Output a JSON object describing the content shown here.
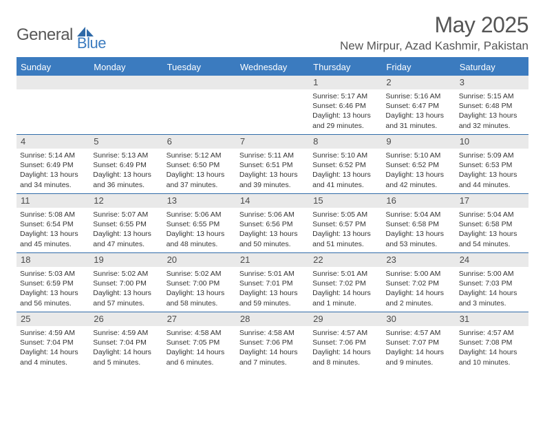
{
  "logo": {
    "text1": "General",
    "text2": "Blue"
  },
  "title": {
    "month": "May 2025",
    "location": "New Mirpur, Azad Kashmir, Pakistan"
  },
  "colors": {
    "header_bg": "#3b7bbf",
    "header_border": "#3b7bbf",
    "week_divider": "#2f6aa8",
    "daynum_bg": "#e9e9e9",
    "text_body": "#333333",
    "text_title": "#555555",
    "logo_gray": "#575757",
    "logo_blue": "#3b7bbf"
  },
  "day_labels": [
    "Sunday",
    "Monday",
    "Tuesday",
    "Wednesday",
    "Thursday",
    "Friday",
    "Saturday"
  ],
  "weeks": [
    [
      {
        "n": "",
        "lines": []
      },
      {
        "n": "",
        "lines": []
      },
      {
        "n": "",
        "lines": []
      },
      {
        "n": "",
        "lines": []
      },
      {
        "n": "1",
        "lines": [
          "Sunrise: 5:17 AM",
          "Sunset: 6:46 PM",
          "Daylight: 13 hours",
          "and 29 minutes."
        ]
      },
      {
        "n": "2",
        "lines": [
          "Sunrise: 5:16 AM",
          "Sunset: 6:47 PM",
          "Daylight: 13 hours",
          "and 31 minutes."
        ]
      },
      {
        "n": "3",
        "lines": [
          "Sunrise: 5:15 AM",
          "Sunset: 6:48 PM",
          "Daylight: 13 hours",
          "and 32 minutes."
        ]
      }
    ],
    [
      {
        "n": "4",
        "lines": [
          "Sunrise: 5:14 AM",
          "Sunset: 6:49 PM",
          "Daylight: 13 hours",
          "and 34 minutes."
        ]
      },
      {
        "n": "5",
        "lines": [
          "Sunrise: 5:13 AM",
          "Sunset: 6:49 PM",
          "Daylight: 13 hours",
          "and 36 minutes."
        ]
      },
      {
        "n": "6",
        "lines": [
          "Sunrise: 5:12 AM",
          "Sunset: 6:50 PM",
          "Daylight: 13 hours",
          "and 37 minutes."
        ]
      },
      {
        "n": "7",
        "lines": [
          "Sunrise: 5:11 AM",
          "Sunset: 6:51 PM",
          "Daylight: 13 hours",
          "and 39 minutes."
        ]
      },
      {
        "n": "8",
        "lines": [
          "Sunrise: 5:10 AM",
          "Sunset: 6:52 PM",
          "Daylight: 13 hours",
          "and 41 minutes."
        ]
      },
      {
        "n": "9",
        "lines": [
          "Sunrise: 5:10 AM",
          "Sunset: 6:52 PM",
          "Daylight: 13 hours",
          "and 42 minutes."
        ]
      },
      {
        "n": "10",
        "lines": [
          "Sunrise: 5:09 AM",
          "Sunset: 6:53 PM",
          "Daylight: 13 hours",
          "and 44 minutes."
        ]
      }
    ],
    [
      {
        "n": "11",
        "lines": [
          "Sunrise: 5:08 AM",
          "Sunset: 6:54 PM",
          "Daylight: 13 hours",
          "and 45 minutes."
        ]
      },
      {
        "n": "12",
        "lines": [
          "Sunrise: 5:07 AM",
          "Sunset: 6:55 PM",
          "Daylight: 13 hours",
          "and 47 minutes."
        ]
      },
      {
        "n": "13",
        "lines": [
          "Sunrise: 5:06 AM",
          "Sunset: 6:55 PM",
          "Daylight: 13 hours",
          "and 48 minutes."
        ]
      },
      {
        "n": "14",
        "lines": [
          "Sunrise: 5:06 AM",
          "Sunset: 6:56 PM",
          "Daylight: 13 hours",
          "and 50 minutes."
        ]
      },
      {
        "n": "15",
        "lines": [
          "Sunrise: 5:05 AM",
          "Sunset: 6:57 PM",
          "Daylight: 13 hours",
          "and 51 minutes."
        ]
      },
      {
        "n": "16",
        "lines": [
          "Sunrise: 5:04 AM",
          "Sunset: 6:58 PM",
          "Daylight: 13 hours",
          "and 53 minutes."
        ]
      },
      {
        "n": "17",
        "lines": [
          "Sunrise: 5:04 AM",
          "Sunset: 6:58 PM",
          "Daylight: 13 hours",
          "and 54 minutes."
        ]
      }
    ],
    [
      {
        "n": "18",
        "lines": [
          "Sunrise: 5:03 AM",
          "Sunset: 6:59 PM",
          "Daylight: 13 hours",
          "and 56 minutes."
        ]
      },
      {
        "n": "19",
        "lines": [
          "Sunrise: 5:02 AM",
          "Sunset: 7:00 PM",
          "Daylight: 13 hours",
          "and 57 minutes."
        ]
      },
      {
        "n": "20",
        "lines": [
          "Sunrise: 5:02 AM",
          "Sunset: 7:00 PM",
          "Daylight: 13 hours",
          "and 58 minutes."
        ]
      },
      {
        "n": "21",
        "lines": [
          "Sunrise: 5:01 AM",
          "Sunset: 7:01 PM",
          "Daylight: 13 hours",
          "and 59 minutes."
        ]
      },
      {
        "n": "22",
        "lines": [
          "Sunrise: 5:01 AM",
          "Sunset: 7:02 PM",
          "Daylight: 14 hours",
          "and 1 minute."
        ]
      },
      {
        "n": "23",
        "lines": [
          "Sunrise: 5:00 AM",
          "Sunset: 7:02 PM",
          "Daylight: 14 hours",
          "and 2 minutes."
        ]
      },
      {
        "n": "24",
        "lines": [
          "Sunrise: 5:00 AM",
          "Sunset: 7:03 PM",
          "Daylight: 14 hours",
          "and 3 minutes."
        ]
      }
    ],
    [
      {
        "n": "25",
        "lines": [
          "Sunrise: 4:59 AM",
          "Sunset: 7:04 PM",
          "Daylight: 14 hours",
          "and 4 minutes."
        ]
      },
      {
        "n": "26",
        "lines": [
          "Sunrise: 4:59 AM",
          "Sunset: 7:04 PM",
          "Daylight: 14 hours",
          "and 5 minutes."
        ]
      },
      {
        "n": "27",
        "lines": [
          "Sunrise: 4:58 AM",
          "Sunset: 7:05 PM",
          "Daylight: 14 hours",
          "and 6 minutes."
        ]
      },
      {
        "n": "28",
        "lines": [
          "Sunrise: 4:58 AM",
          "Sunset: 7:06 PM",
          "Daylight: 14 hours",
          "and 7 minutes."
        ]
      },
      {
        "n": "29",
        "lines": [
          "Sunrise: 4:57 AM",
          "Sunset: 7:06 PM",
          "Daylight: 14 hours",
          "and 8 minutes."
        ]
      },
      {
        "n": "30",
        "lines": [
          "Sunrise: 4:57 AM",
          "Sunset: 7:07 PM",
          "Daylight: 14 hours",
          "and 9 minutes."
        ]
      },
      {
        "n": "31",
        "lines": [
          "Sunrise: 4:57 AM",
          "Sunset: 7:08 PM",
          "Daylight: 14 hours",
          "and 10 minutes."
        ]
      }
    ]
  ]
}
